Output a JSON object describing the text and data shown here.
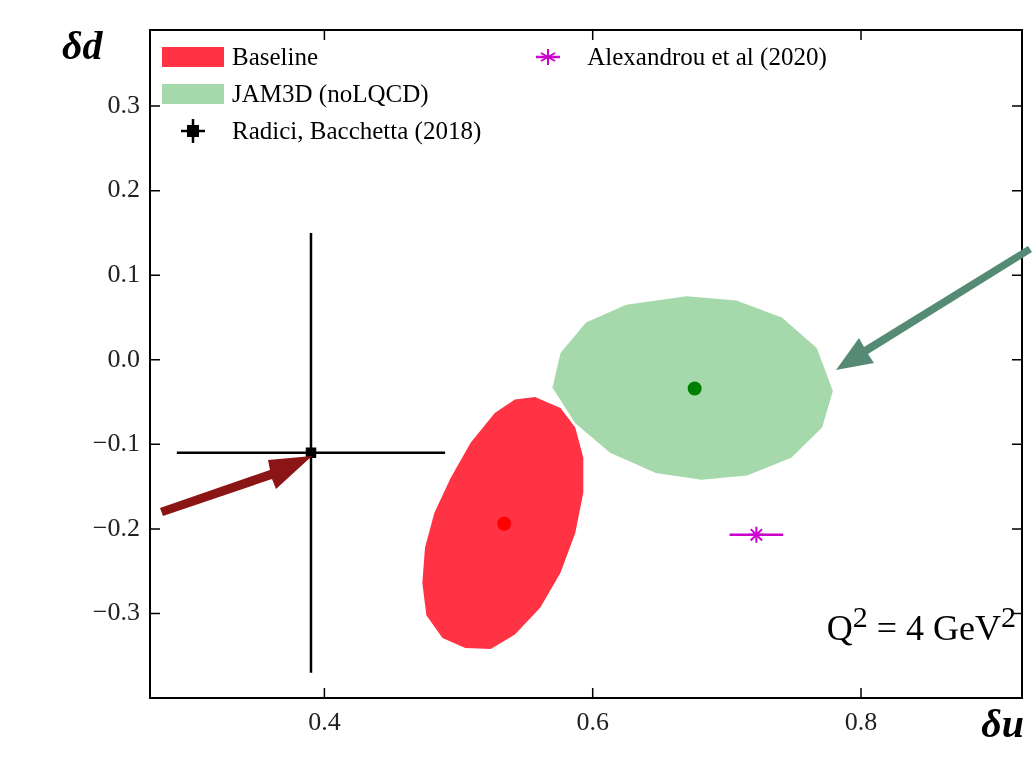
{
  "chart_data": {
    "type": "scatter",
    "xlabel": "δu",
    "ylabel": "δd",
    "xlim": [
      0.27,
      0.92
    ],
    "ylim": [
      -0.4,
      0.39
    ],
    "xticks": [
      0.4,
      0.6,
      0.8
    ],
    "yticks": [
      -0.3,
      -0.2,
      -0.1,
      {
        "value": 0,
        "label": "0.0"
      },
      0.1,
      0.2,
      0.3
    ],
    "grid": false,
    "legend": "top left",
    "annotations": [
      "Q$^{2}$ = 4 GeV$^{2}$"
    ],
    "series": [
      {
        "name": "Baseline",
        "type": "area",
        "color": "#ff3344",
        "x": [
          0.557,
          0.576,
          0.587,
          0.593,
          0.593,
          0.587,
          0.576,
          0.561,
          0.542,
          0.524,
          0.505,
          0.488,
          0.476,
          0.473,
          0.475,
          0.482,
          0.494,
          0.509,
          0.527,
          0.542
        ],
        "values": [
          -0.044,
          -0.057,
          -0.08,
          -0.116,
          -0.157,
          -0.205,
          -0.252,
          -0.293,
          -0.325,
          -0.342,
          -0.341,
          -0.329,
          -0.302,
          -0.264,
          -0.222,
          -0.181,
          -0.14,
          -0.098,
          -0.063,
          -0.047
        ]
      },
      {
        "color": "#ff0000",
        "marker": "circle",
        "x": [
          0.534
        ],
        "values": [
          -0.194
        ]
      },
      {
        "name": "JAM3D (noLQCD)",
        "type": "area",
        "color": "#a5d8aa",
        "x": [
          0.67,
          0.707,
          0.741,
          0.767,
          0.779,
          0.771,
          0.748,
          0.715,
          0.681,
          0.647,
          0.613,
          0.587,
          0.57,
          0.576,
          0.595,
          0.625
        ],
        "values": [
          0.075,
          0.07,
          0.05,
          0.014,
          -0.037,
          -0.08,
          -0.116,
          -0.137,
          -0.142,
          -0.134,
          -0.11,
          -0.075,
          -0.033,
          0.008,
          0.044,
          0.065
        ]
      },
      {
        "color": "#008000",
        "marker": "circle",
        "x": [
          0.676
        ],
        "values": [
          -0.034
        ]
      },
      {
        "name": "Radici, Bacchetta (2018)",
        "color": "#000000",
        "marker": "square",
        "x": [
          0.39
        ],
        "values": [
          -0.11
        ],
        "errors": [
          0.26
        ],
        "xerrors": [
          0.1
        ]
      },
      {
        "name": "Alexandrou et al (2020)",
        "color": "#cc00cc",
        "marker": "cross",
        "x": [
          0.722
        ],
        "values": [
          -0.207
        ],
        "xerrors": [
          0.02
        ]
      }
    ]
  }
}
